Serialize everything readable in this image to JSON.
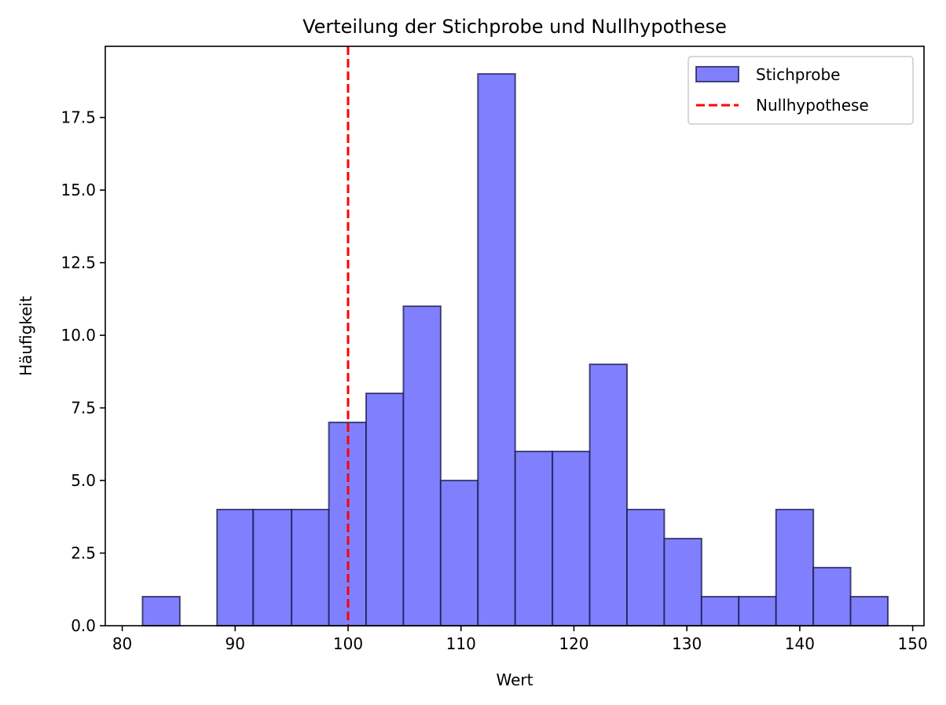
{
  "chart_data": {
    "type": "bar",
    "title": "Verteilung der Stichprobe und Nullhypothese",
    "xlabel": "Wert",
    "ylabel": "Häufigkeit",
    "xlim": [
      78.5,
      151.0
    ],
    "ylim": [
      0,
      19.95
    ],
    "x_ticks": [
      80,
      90,
      100,
      110,
      120,
      130,
      140,
      150
    ],
    "x_tick_labels": [
      "80",
      "90",
      "100",
      "110",
      "120",
      "130",
      "140",
      "150"
    ],
    "y_ticks": [
      0,
      2.5,
      5,
      7.5,
      10,
      12.5,
      15,
      17.5
    ],
    "y_tick_labels": [
      "0.0",
      "2.5",
      "5.0",
      "7.5",
      "10.0",
      "12.5",
      "15.0",
      "17.5"
    ],
    "series": [
      {
        "name": "Stichprobe",
        "kind": "histogram",
        "color": "#8080ff",
        "edge_color": "#1a1a4d",
        "bin_edges": [
          81.8,
          85.1,
          88.4,
          91.6,
          95.0,
          98.3,
          101.6,
          104.9,
          108.2,
          111.5,
          114.8,
          118.1,
          121.4,
          124.7,
          128.0,
          131.3,
          134.6,
          137.9,
          141.2,
          144.5,
          147.8
        ],
        "values": [
          1,
          0,
          4,
          4,
          4,
          7,
          8,
          11,
          5,
          19,
          6,
          6,
          9,
          4,
          3,
          1,
          1,
          4,
          2,
          1
        ]
      },
      {
        "name": "Nullhypothese",
        "kind": "vline",
        "x": 100,
        "color": "#ff0000",
        "linestyle": "dashed"
      }
    ],
    "legend": {
      "position": "top-right",
      "entries": [
        "Stichprobe",
        "Nullhypothese"
      ]
    },
    "grid": false
  }
}
